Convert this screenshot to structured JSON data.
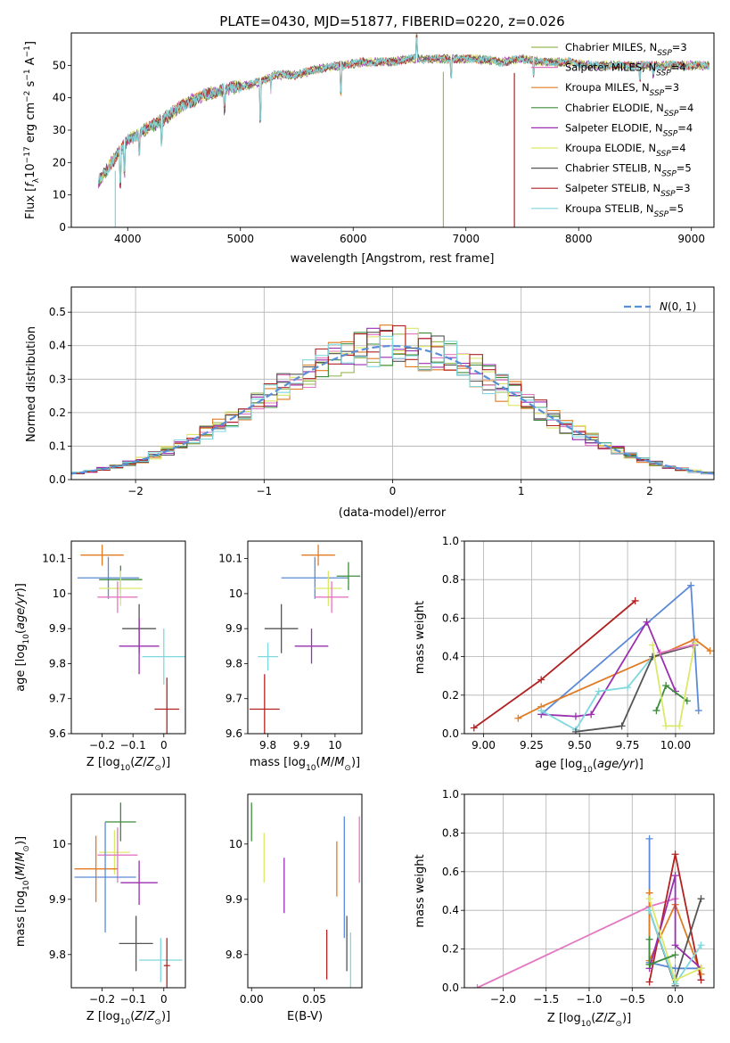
{
  "figure_title": "PLATE=0430, MJD=51877, FIBERID=0220, z=0.026",
  "colors": {
    "chabrier_miles": "#99bb55",
    "salpeter_miles": "#e377c2",
    "kroupa_miles": "#e07b24",
    "chabrier_elodie": "#3c8c3c",
    "salpeter_elodie": "#9a2fb0",
    "kroupa_elodie": "#dbe86a",
    "chabrier_stelib": "#555555",
    "salpeter_stelib": "#b22222",
    "kroupa_stelib": "#7fd8dd",
    "norm_curve": "#5b8fd6",
    "mw_blue": "#5b8ad8"
  },
  "chart_data": [
    {
      "id": "spectrum",
      "type": "line",
      "xlabel": "wavelength [Angstrom, rest frame]",
      "ylabel": "Flux [f_λ 10^-17 erg cm^-2 s^-1 A^-1]",
      "xlim": [
        3500,
        9200
      ],
      "ylim": [
        0,
        60
      ],
      "xticks": [
        4000,
        5000,
        6000,
        7000,
        8000,
        9000
      ],
      "yticks": [
        0,
        10,
        20,
        30,
        40,
        50
      ],
      "grid": false,
      "legend_position": "right",
      "legend": [
        {
          "label": "Chabrier MILES, N",
          "sub": "SSP",
          "suffix": "=3",
          "color": "#99bb55"
        },
        {
          "label": "Salpeter MILES, N",
          "sub": "SSP",
          "suffix": "=4",
          "color": "#e377c2"
        },
        {
          "label": "Kroupa MILES, N",
          "sub": "SSP",
          "suffix": "=3",
          "color": "#e07b24"
        },
        {
          "label": "Chabrier ELODIE, N",
          "sub": "SSP",
          "suffix": "=4",
          "color": "#3c8c3c"
        },
        {
          "label": "Salpeter ELODIE, N",
          "sub": "SSP",
          "suffix": "=4",
          "color": "#9a2fb0"
        },
        {
          "label": "Kroupa ELODIE, N",
          "sub": "SSP",
          "suffix": "=4",
          "color": "#dbe86a"
        },
        {
          "label": "Chabrier STELIB, N",
          "sub": "SSP",
          "suffix": "=5",
          "color": "#555555"
        },
        {
          "label": "Salpeter STELIB, N",
          "sub": "SSP",
          "suffix": "=3",
          "color": "#b22222"
        },
        {
          "label": "Kroupa STELIB, N",
          "sub": "SSP",
          "suffix": "=5",
          "color": "#7fd8dd"
        }
      ],
      "continuum_x": [
        3740,
        3800,
        3900,
        4000,
        4100,
        4300,
        4500,
        4700,
        4900,
        5100,
        5300,
        5500,
        5700,
        5900,
        6100,
        6300,
        6500,
        6700,
        6900,
        7100,
        7300,
        7500,
        7700,
        7900,
        8100,
        8300,
        8500,
        8700,
        8900,
        9100
      ],
      "continuum_y": [
        14,
        17,
        22,
        27,
        29,
        33,
        38,
        41,
        43,
        44,
        47,
        47,
        49,
        50,
        51,
        51,
        52,
        52,
        52,
        52,
        51,
        52,
        51,
        51,
        50,
        50,
        50,
        50,
        50,
        50
      ],
      "drops": [
        {
          "x": 3890,
          "y_min": 0
        },
        {
          "x": 6800,
          "y_min": 0
        },
        {
          "x": 7430,
          "y_min": 0
        }
      ]
    },
    {
      "id": "residuals",
      "type": "histogram",
      "xlabel": "(data-model)/error",
      "ylabel": "Normed distribution",
      "xlim": [
        -2.5,
        2.5
      ],
      "ylim": [
        0,
        0.575
      ],
      "xticks": [
        -2,
        -1,
        0,
        1,
        2
      ],
      "yticks": [
        0.0,
        0.1,
        0.2,
        0.3,
        0.4,
        0.5
      ],
      "grid": true,
      "legend_position": "top-right",
      "curve_label": "N(0,1)",
      "bin_width": 0.1,
      "bins_start": -2.5
    },
    {
      "id": "age_vs_Z",
      "type": "errorbar",
      "xlabel": "Z [log10(Z/Z_sun)]",
      "ylabel": "age [log10(age/yr)]",
      "xlim": [
        -0.3,
        0.07
      ],
      "ylim": [
        9.6,
        10.15
      ],
      "xticks": [
        -0.2,
        -0.1,
        0.0
      ],
      "yticks": [
        9.6,
        9.7,
        9.8,
        9.9,
        10.0,
        10.1
      ],
      "points": [
        {
          "model": "kroupa_miles",
          "x": -0.2,
          "xerr": 0.07,
          "y": 10.11,
          "yerr": 0.03
        },
        {
          "model": "mw_blue",
          "x": -0.18,
          "xerr": 0.1,
          "y": 10.045,
          "yerr": 0.06
        },
        {
          "model": "chabrier_elodie",
          "x": -0.14,
          "xerr": 0.07,
          "y": 10.04,
          "yerr": 0.04
        },
        {
          "model": "kroupa_elodie",
          "x": -0.14,
          "xerr": 0.07,
          "y": 10.015,
          "yerr": 0.05
        },
        {
          "model": "salpeter_miles",
          "x": -0.15,
          "xerr": 0.065,
          "y": 9.99,
          "yerr": 0.045
        },
        {
          "model": "chabrier_stelib",
          "x": -0.08,
          "xerr": 0.055,
          "y": 9.9,
          "yerr": 0.07
        },
        {
          "model": "salpeter_elodie",
          "x": -0.08,
          "xerr": 0.065,
          "y": 9.85,
          "yerr": 0.08
        },
        {
          "model": "kroupa_stelib",
          "x": 0.0,
          "xerr": 0.07,
          "y": 9.82,
          "yerr": 0.08
        },
        {
          "model": "salpeter_stelib",
          "x": 0.01,
          "xerr": 0.04,
          "y": 9.67,
          "yerr": 0.09
        }
      ]
    },
    {
      "id": "age_vs_mass",
      "type": "errorbar",
      "xlabel": "mass [log10(M/M_sun)]",
      "ylabel": "",
      "xlim": [
        9.74,
        10.08
      ],
      "ylim": [
        9.6,
        10.15
      ],
      "xticks": [
        9.8,
        9.9,
        10.0
      ],
      "yticks": [
        9.6,
        9.7,
        9.8,
        9.9,
        10.0,
        10.1
      ],
      "points": [
        {
          "model": "kroupa_miles",
          "x": 9.95,
          "xerr": 0.05,
          "y": 10.11,
          "yerr": 0.03
        },
        {
          "model": "mw_blue",
          "x": 9.94,
          "xerr": 0.1,
          "y": 10.045,
          "yerr": 0.06
        },
        {
          "model": "chabrier_elodie",
          "x": 10.04,
          "xerr": 0.035,
          "y": 10.05,
          "yerr": 0.04
        },
        {
          "model": "kroupa_elodie",
          "x": 9.98,
          "xerr": 0.04,
          "y": 10.015,
          "yerr": 0.05
        },
        {
          "model": "salpeter_miles",
          "x": 9.99,
          "xerr": 0.05,
          "y": 9.99,
          "yerr": 0.045
        },
        {
          "model": "chabrier_stelib",
          "x": 9.84,
          "xerr": 0.05,
          "y": 9.9,
          "yerr": 0.07
        },
        {
          "model": "salpeter_elodie",
          "x": 9.93,
          "xerr": 0.05,
          "y": 9.85,
          "yerr": 0.05
        },
        {
          "model": "kroupa_stelib",
          "x": 9.8,
          "xerr": 0.03,
          "y": 9.82,
          "yerr": 0.04
        },
        {
          "model": "salpeter_stelib",
          "x": 9.79,
          "xerr": 0.045,
          "y": 9.67,
          "yerr": 0.1
        }
      ]
    },
    {
      "id": "weight_vs_age",
      "type": "line",
      "xlabel": "age [log10(age/yr)]",
      "ylabel": "mass weight",
      "xlim": [
        8.9,
        10.2
      ],
      "ylim": [
        0,
        1.0
      ],
      "xticks": [
        9.0,
        9.25,
        9.5,
        9.75,
        10.0
      ],
      "yticks": [
        0.0,
        0.2,
        0.4,
        0.6,
        0.8,
        1.0
      ],
      "grid": true,
      "series": [
        {
          "model": "salpeter_stelib",
          "x": [
            8.95,
            9.3,
            9.79
          ],
          "y": [
            0.03,
            0.28,
            0.69
          ]
        },
        {
          "model": "mw_blue",
          "x": [
            9.3,
            10.08,
            10.12
          ],
          "y": [
            0.1,
            0.77,
            0.12
          ]
        },
        {
          "model": "kroupa_miles",
          "x": [
            9.18,
            9.3,
            10.1,
            10.18
          ],
          "y": [
            0.08,
            0.14,
            0.49,
            0.43
          ]
        },
        {
          "model": "salpeter_elodie",
          "x": [
            9.3,
            9.48,
            9.56,
            9.85,
            10.0
          ],
          "y": [
            0.1,
            0.09,
            0.1,
            0.58,
            0.22
          ]
        },
        {
          "model": "kroupa_stelib",
          "x": [
            9.3,
            9.48,
            9.6,
            9.75,
            9.88
          ],
          "y": [
            0.12,
            0.02,
            0.22,
            0.24,
            0.4
          ]
        },
        {
          "model": "chabrier_stelib",
          "x": [
            9.48,
            9.72,
            9.88,
            10.1
          ],
          "y": [
            0.01,
            0.04,
            0.4,
            0.46
          ]
        },
        {
          "model": "chabrier_elodie",
          "x": [
            9.9,
            9.95,
            10.06
          ],
          "y": [
            0.12,
            0.25,
            0.17
          ]
        },
        {
          "model": "kroupa_elodie",
          "x": [
            9.88,
            9.95,
            10.02,
            10.1
          ],
          "y": [
            0.46,
            0.04,
            0.04,
            0.47
          ]
        },
        {
          "model": "salpeter_miles",
          "x": [
            9.92,
            10.09
          ],
          "y": [
            0.42,
            0.46
          ]
        }
      ]
    },
    {
      "id": "mass_vs_Z",
      "type": "errorbar",
      "xlabel": "Z [log10(Z/Z_sun)]",
      "ylabel": "mass [log10(M/M_sun)]",
      "xlim": [
        -0.3,
        0.07
      ],
      "ylim": [
        9.74,
        10.09
      ],
      "xticks": [
        -0.2,
        -0.1,
        0.0
      ],
      "yticks": [
        9.8,
        9.9,
        10.0
      ],
      "points": [
        {
          "model": "chabrier_elodie",
          "x": -0.14,
          "xerr": 0.05,
          "y": 10.04,
          "yerr": 0.035
        },
        {
          "model": "kroupa_elodie",
          "x": -0.16,
          "xerr": 0.05,
          "y": 9.985,
          "yerr": 0.04
        },
        {
          "model": "salpeter_miles",
          "x": -0.15,
          "xerr": 0.065,
          "y": 9.98,
          "yerr": 0.05
        },
        {
          "model": "kroupa_miles",
          "x": -0.22,
          "xerr": 0.07,
          "y": 9.955,
          "yerr": 0.06
        },
        {
          "model": "mw_blue",
          "x": -0.19,
          "xerr": 0.1,
          "y": 9.94,
          "yerr": 0.1
        },
        {
          "model": "salpeter_elodie",
          "x": -0.08,
          "xerr": 0.06,
          "y": 9.93,
          "yerr": 0.04
        },
        {
          "model": "chabrier_stelib",
          "x": -0.09,
          "xerr": 0.055,
          "y": 9.82,
          "yerr": 0.05
        },
        {
          "model": "kroupa_stelib",
          "x": -0.01,
          "xerr": 0.07,
          "y": 9.79,
          "yerr": 0.04
        },
        {
          "model": "salpeter_stelib",
          "x": 0.01,
          "xerr": 0.01,
          "y": 9.78,
          "yerr": 0.05
        }
      ]
    },
    {
      "id": "mass_vs_ebv",
      "type": "errorbar",
      "xlabel": "E(B-V)",
      "ylabel": "",
      "xlim": [
        -0.003,
        0.088
      ],
      "ylim": [
        9.74,
        10.09
      ],
      "xticks": [
        0.0,
        0.05
      ],
      "yticks": [
        9.8,
        9.9,
        10.0
      ],
      "points": [
        {
          "model": "chabrier_elodie",
          "x": 0.0,
          "xerr": 0,
          "y": 10.04,
          "yerr": 0.035
        },
        {
          "model": "kroupa_elodie",
          "x": 0.01,
          "xerr": 0,
          "y": 9.975,
          "yerr": 0.045
        },
        {
          "model": "salpeter_elodie",
          "x": 0.026,
          "xerr": 0,
          "y": 9.925,
          "yerr": 0.05
        },
        {
          "model": "salpeter_stelib",
          "x": 0.06,
          "xerr": 0,
          "y": 9.8,
          "yerr": 0.045
        },
        {
          "model": "kroupa_miles",
          "x": 0.068,
          "xerr": 0,
          "y": 9.955,
          "yerr": 0.05
        },
        {
          "model": "mw_blue",
          "x": 0.074,
          "xerr": 0,
          "y": 9.94,
          "yerr": 0.11
        },
        {
          "model": "chabrier_stelib",
          "x": 0.076,
          "xerr": 0,
          "y": 9.82,
          "yerr": 0.05
        },
        {
          "model": "kroupa_stelib",
          "x": 0.079,
          "xerr": 0,
          "y": 9.79,
          "yerr": 0.05
        },
        {
          "model": "salpeter_miles",
          "x": 0.086,
          "xerr": 0,
          "y": 9.99,
          "yerr": 0.06
        }
      ]
    },
    {
      "id": "weight_vs_Z",
      "type": "line",
      "xlabel": "Z [log10(Z/Z_sun)]",
      "ylabel": "mass weight",
      "xlim": [
        -2.45,
        0.45
      ],
      "ylim": [
        0,
        1.0
      ],
      "xticks": [
        -2.0,
        -1.5,
        -1.0,
        -0.5,
        0.0
      ],
      "yticks": [
        0.0,
        0.2,
        0.4,
        0.6,
        0.8,
        1.0
      ],
      "grid": true,
      "series": [
        {
          "model": "salpeter_miles",
          "x": [
            -2.3,
            -0.3,
            0.0
          ],
          "y": [
            0.0,
            0.42,
            0.46
          ]
        },
        {
          "model": "mw_blue",
          "x": [
            -0.3,
            -0.3,
            0.0,
            0.3
          ],
          "y": [
            0.77,
            0.13,
            0.1,
            0.1
          ]
        },
        {
          "model": "kroupa_miles",
          "x": [
            -0.3,
            -0.3,
            0.0,
            0.3
          ],
          "y": [
            0.49,
            0.14,
            0.43,
            0.07
          ]
        },
        {
          "model": "salpeter_stelib",
          "x": [
            -0.3,
            0.0,
            0.3
          ],
          "y": [
            0.03,
            0.69,
            0.04
          ]
        },
        {
          "model": "salpeter_elodie",
          "x": [
            -0.3,
            0.0,
            0.0,
            0.3
          ],
          "y": [
            0.1,
            0.58,
            0.22,
            0.1
          ]
        },
        {
          "model": "chabrier_stelib",
          "x": [
            -0.3,
            0.0,
            0.0,
            0.3
          ],
          "y": [
            0.4,
            0.01,
            0.04,
            0.46
          ]
        },
        {
          "model": "kroupa_stelib",
          "x": [
            -0.3,
            0.0,
            0.3
          ],
          "y": [
            0.4,
            0.02,
            0.22
          ]
        },
        {
          "model": "kroupa_elodie",
          "x": [
            -0.3,
            0.0,
            0.0,
            0.3
          ],
          "y": [
            0.46,
            0.04,
            0.04,
            0.1
          ]
        },
        {
          "model": "chabrier_elodie",
          "x": [
            -0.3,
            -0.3,
            0.0
          ],
          "y": [
            0.25,
            0.12,
            0.17
          ]
        }
      ]
    }
  ]
}
